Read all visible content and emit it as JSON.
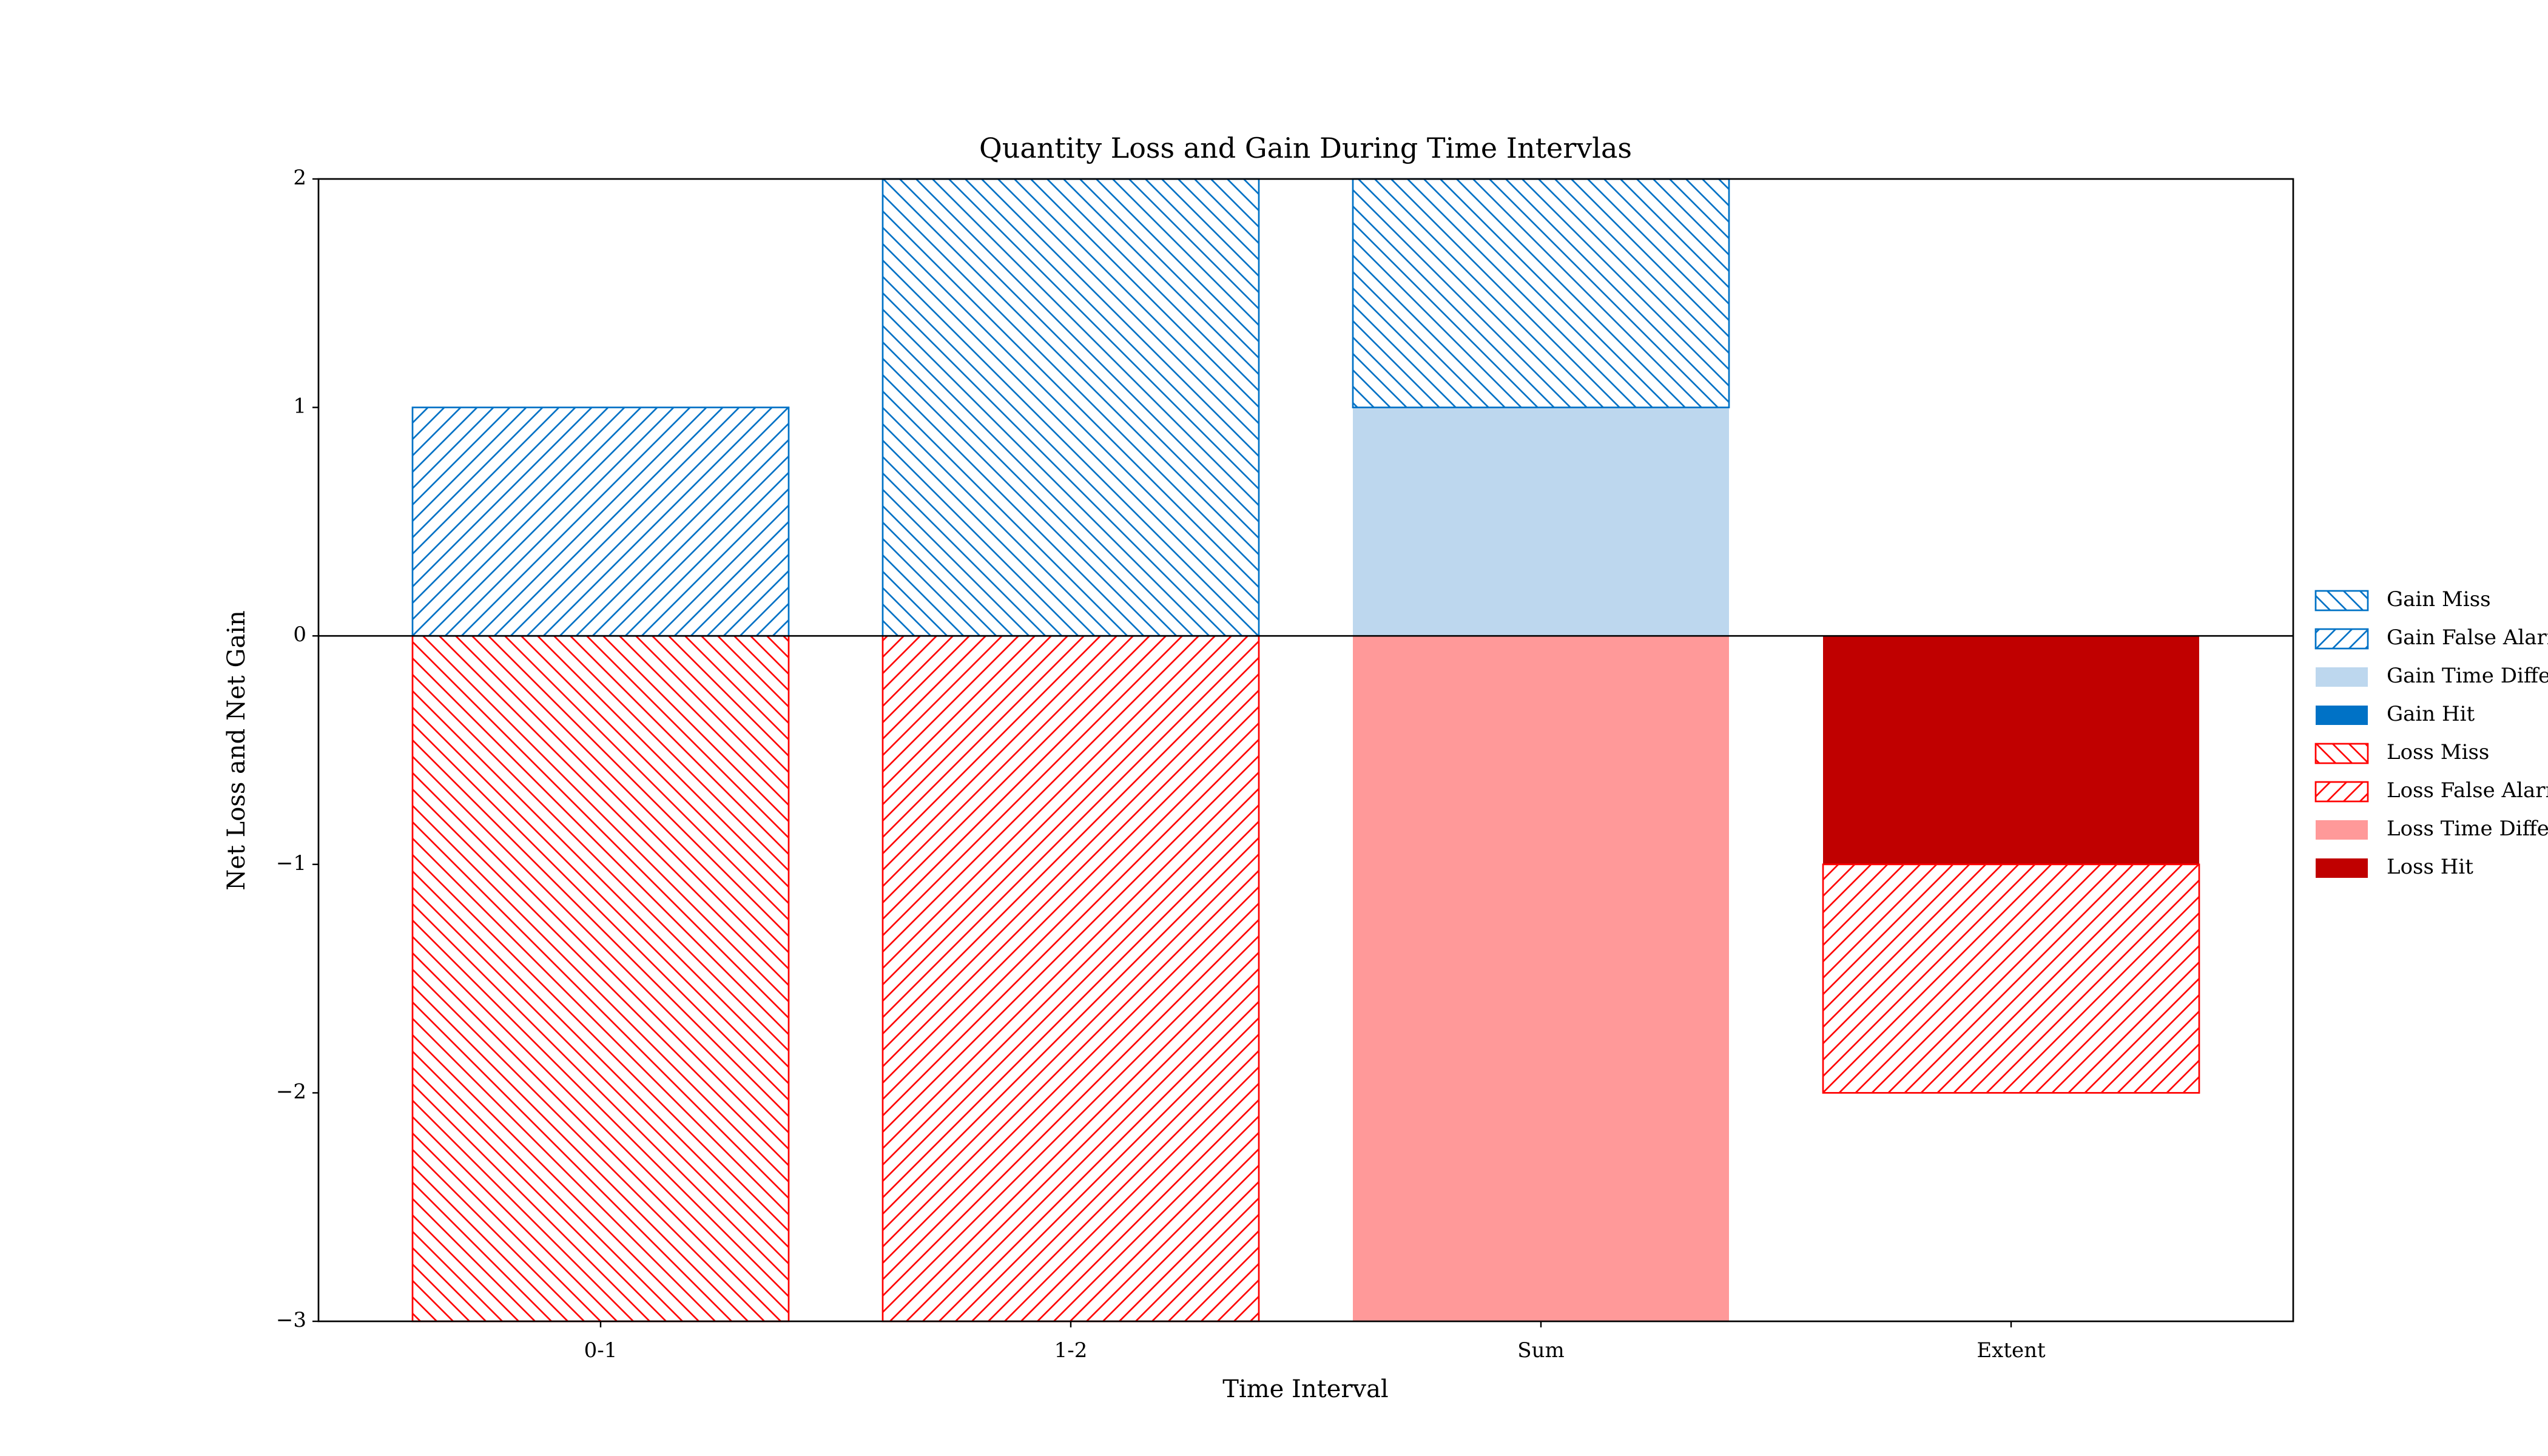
{
  "chart_data": {
    "type": "stacked_bar",
    "title": "Quantity Loss and Gain During Time Intervlas",
    "x_label": "Time Interval",
    "y_label": "Net Loss and Net Gain",
    "categories": [
      "0-1",
      "1-2",
      "Sum",
      "Extent"
    ],
    "ylim": [
      -3,
      2
    ],
    "yticks": [
      {
        "value": -3,
        "label": "−3"
      },
      {
        "value": -2,
        "label": "−2"
      },
      {
        "value": -1,
        "label": "−1"
      },
      0,
      1,
      2
    ],
    "legend": "outside-right",
    "series": [
      {
        "name": "Gain Miss",
        "color": "#0072c6",
        "hatch": "\\",
        "values": [
          null,
          2,
          1,
          null
        ]
      },
      {
        "name": "Gain False Alarm",
        "color": "#0072c6",
        "hatch": "/",
        "values": [
          1,
          null,
          null,
          null
        ]
      },
      {
        "name": "Gain Time Difference",
        "color": "#bdd7ee",
        "values": [
          null,
          null,
          1,
          null
        ]
      },
      {
        "name": "Gain Hit",
        "color": "#0072c6",
        "values": [
          null,
          null,
          null,
          null
        ]
      },
      {
        "name": "Loss Miss",
        "color": "#ff0000",
        "hatch": "\\",
        "values": [
          -3,
          null,
          null,
          null
        ]
      },
      {
        "name": "Loss False Alarm",
        "color": "#ff0000",
        "hatch": "/",
        "values": [
          null,
          -3,
          null,
          -1
        ]
      },
      {
        "name": "Loss Time Difference",
        "color": "#ff9999",
        "values": [
          null,
          null,
          -3,
          null
        ]
      },
      {
        "name": "Loss Hit",
        "color": "#c00000",
        "values": [
          null,
          null,
          null,
          -1
        ]
      }
    ]
  }
}
